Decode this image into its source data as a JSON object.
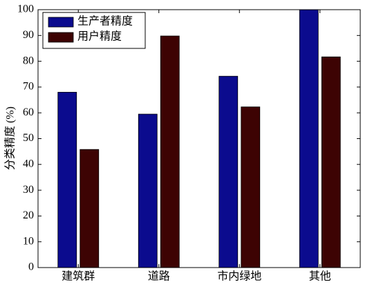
{
  "chart_data": {
    "type": "bar",
    "ylabel": "分类精度 (%)",
    "categories": [
      "建筑群",
      "道路",
      "市内绿地",
      "其他"
    ],
    "series": [
      {
        "name": "生产者精度",
        "color": "#0b0b8e",
        "values": [
          68,
          59.5,
          74.2,
          100
        ]
      },
      {
        "name": "用户精度",
        "color": "#3d0303",
        "values": [
          45.8,
          89.8,
          62.3,
          81.7
        ]
      }
    ],
    "ylim": [
      0,
      100
    ],
    "yticks": [
      0,
      10,
      20,
      30,
      40,
      50,
      60,
      70,
      80,
      90,
      100
    ],
    "legend": "upper left"
  }
}
